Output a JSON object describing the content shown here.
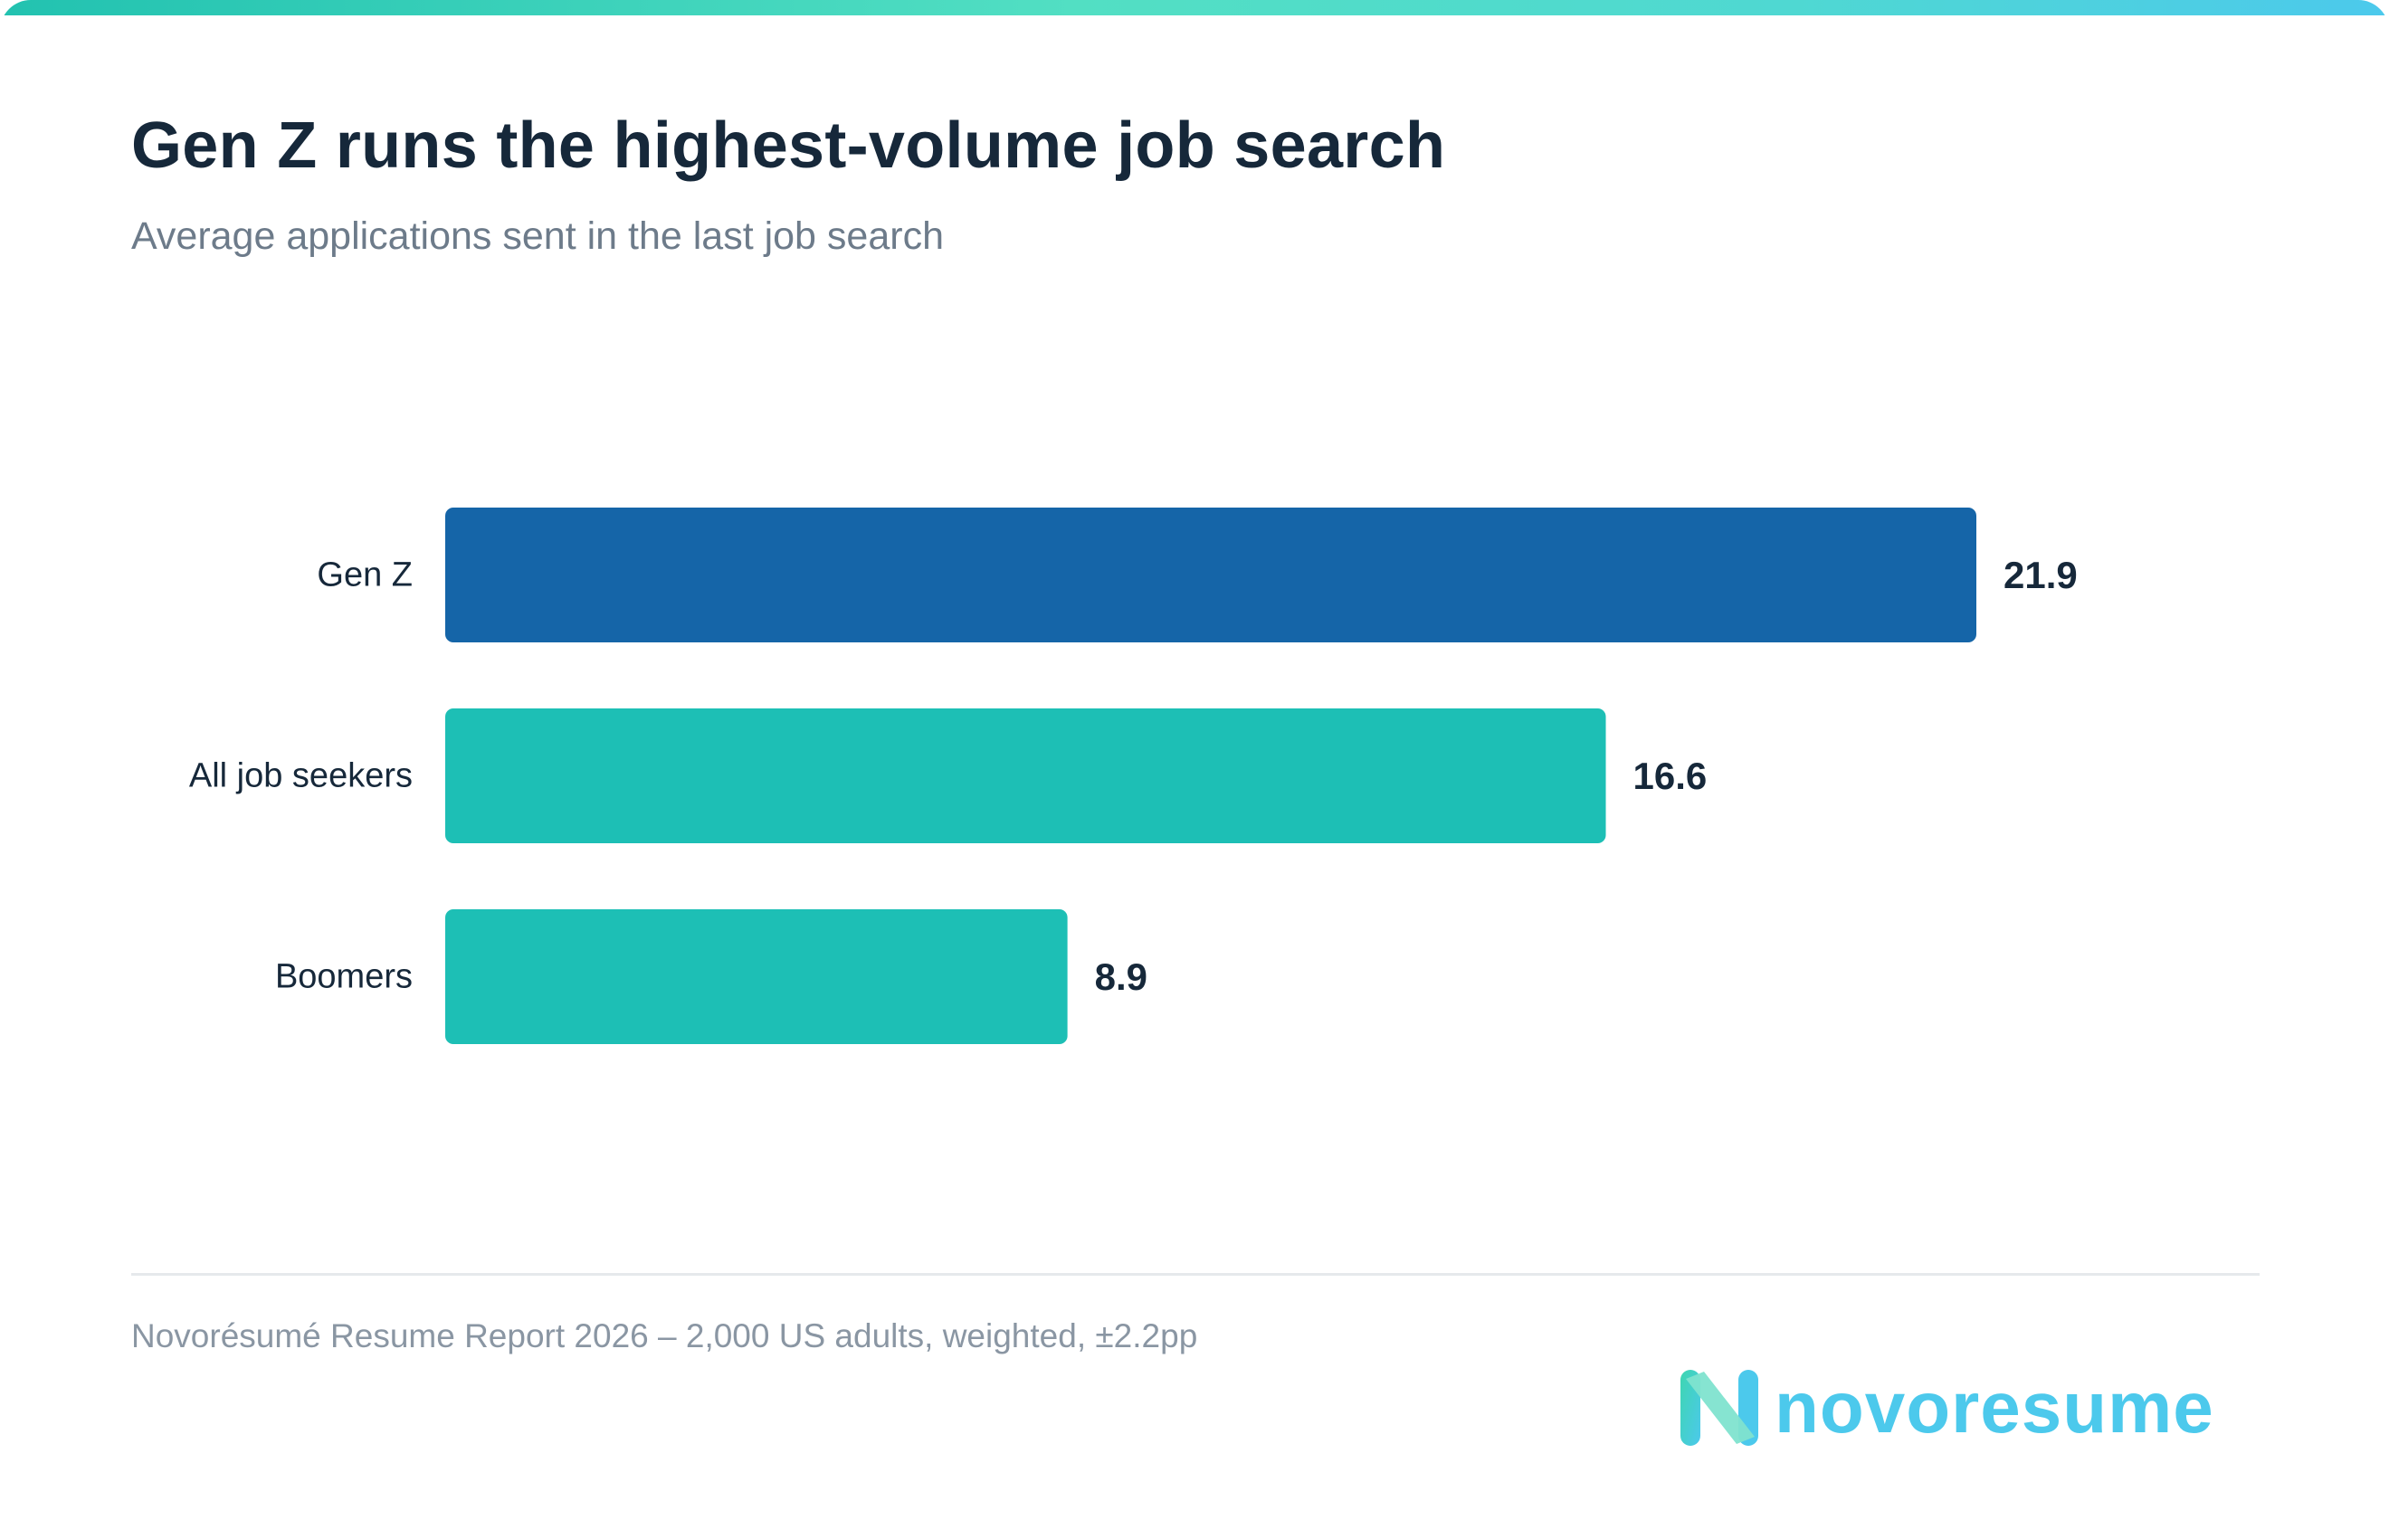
{
  "header": {
    "title": "Gen Z runs the highest-volume job search",
    "subtitle": "Average applications sent in the last job search"
  },
  "chart_data": {
    "type": "bar",
    "orientation": "horizontal",
    "title": "Gen Z runs the highest-volume job search",
    "subtitle": "Average applications sent in the last job search",
    "categories": [
      "Gen Z",
      "All job seekers",
      "Boomers"
    ],
    "values": [
      21.9,
      16.6,
      8.9
    ],
    "value_labels": [
      "21.9",
      "16.6",
      "8.9"
    ],
    "bar_colors": [
      "#1565a8",
      "#1dbfb5",
      "#1dbfb5"
    ],
    "xlim": [
      0,
      21.9
    ],
    "grid": false,
    "legend": "none"
  },
  "footer": {
    "source": "Novorésumé Resume Report 2026 – 2,000 US adults, weighted, ±2.2pp"
  },
  "logo": {
    "wordmark": "novoresume",
    "icon": "novoresume-n-logo-icon",
    "color": "#4cc9ec"
  },
  "colors": {
    "accent_gradient": [
      "#22c2b0",
      "#52dfc3",
      "#4cc9ec"
    ],
    "title": "#16283a",
    "subtitle": "#6d7b8a"
  }
}
